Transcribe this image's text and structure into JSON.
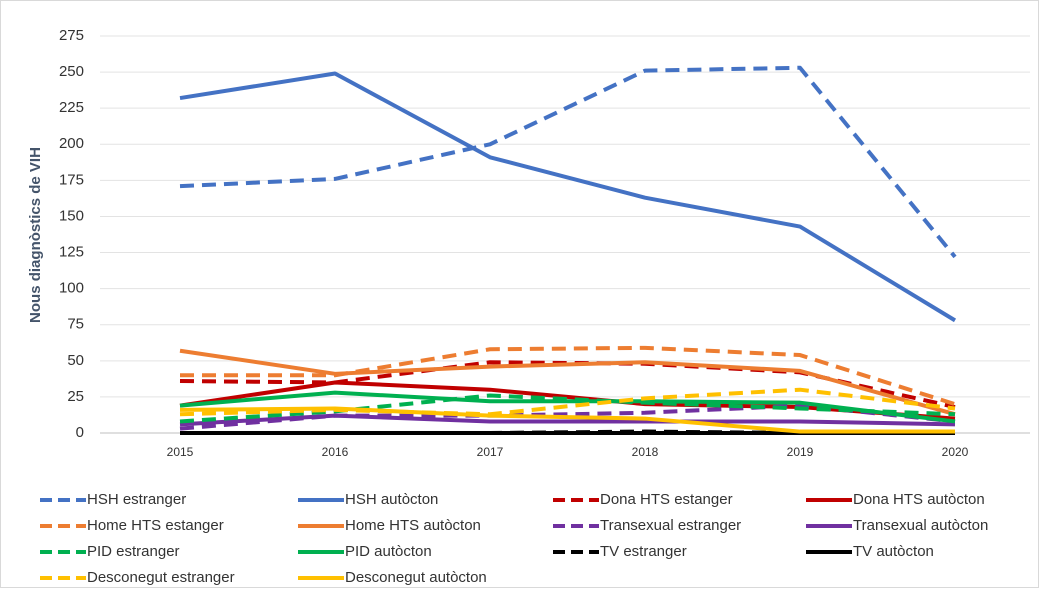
{
  "chart_data": {
    "type": "line",
    "y_label": "Nous diagnòstics de VIH",
    "x": [
      "2015",
      "2016",
      "2017",
      "2018",
      "2019",
      "2020"
    ],
    "ylim": [
      0,
      275
    ],
    "yticks": [
      0,
      25,
      50,
      75,
      100,
      125,
      150,
      175,
      200,
      225,
      250,
      275
    ],
    "grid": true,
    "series": [
      {
        "name": "HSH estranger",
        "color": "#4472c4",
        "dashed": true,
        "values": [
          171,
          176,
          200,
          251,
          253,
          122
        ]
      },
      {
        "name": "HSH autòcton",
        "color": "#4472c4",
        "dashed": false,
        "values": [
          232,
          249,
          191,
          163,
          143,
          78
        ]
      },
      {
        "name": "Dona HTS estanger",
        "color": "#c00000",
        "dashed": true,
        "values": [
          36,
          35,
          49,
          48,
          42,
          18
        ]
      },
      {
        "name": "Dona HTS autòcton",
        "color": "#c00000",
        "dashed": false,
        "values": [
          19,
          35,
          30,
          20,
          18,
          10
        ]
      },
      {
        "name": "Home HTS estanger",
        "color": "#ed7d31",
        "dashed": true,
        "values": [
          40,
          40,
          58,
          59,
          54,
          20
        ]
      },
      {
        "name": "Home HTS autòcton",
        "color": "#ed7d31",
        "dashed": false,
        "values": [
          57,
          41,
          46,
          49,
          43,
          13
        ]
      },
      {
        "name": "Transexual estranger",
        "color": "#7030a0",
        "dashed": true,
        "values": [
          3,
          12,
          12,
          14,
          19,
          8
        ]
      },
      {
        "name": "Transexual autòcton",
        "color": "#7030a0",
        "dashed": false,
        "values": [
          6,
          12,
          8,
          8,
          8,
          6
        ]
      },
      {
        "name": "PID estranger",
        "color": "#00b050",
        "dashed": true,
        "values": [
          8,
          15,
          26,
          21,
          17,
          13
        ]
      },
      {
        "name": "PID autòcton",
        "color": "#00b050",
        "dashed": false,
        "values": [
          19,
          28,
          22,
          22,
          21,
          8
        ]
      },
      {
        "name": "TV estranger",
        "color": "#000000",
        "dashed": true,
        "values": [
          0,
          0,
          0,
          1,
          0,
          0
        ]
      },
      {
        "name": "TV autòcton",
        "color": "#000000",
        "dashed": false,
        "values": [
          0,
          0,
          0,
          0,
          0,
          0
        ]
      },
      {
        "name": "Desconegut estranger",
        "color": "#ffc000",
        "dashed": true,
        "values": [
          13,
          16,
          13,
          24,
          30,
          17
        ]
      },
      {
        "name": "Desconegut autòcton",
        "color": "#ffc000",
        "dashed": false,
        "values": [
          16,
          17,
          12,
          10,
          1,
          1
        ]
      }
    ]
  }
}
